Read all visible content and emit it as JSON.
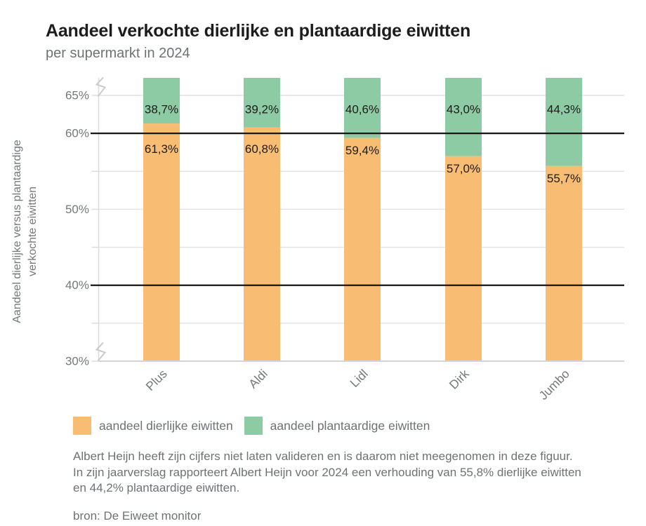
{
  "header": {
    "title": "Aandeel verkochte dierlijke en plantaardige eiwitten",
    "subtitle": "per supermarkt in 2024"
  },
  "chart_data": {
    "type": "bar",
    "variant": "stacked-percentage",
    "title": "Aandeel verkochte dierlijke en plantaardige eiwitten",
    "subtitle": "per supermarkt in 2024",
    "categories": [
      "Plus",
      "Aldi",
      "Lidl",
      "Dirk",
      "Jumbo"
    ],
    "series": [
      {
        "name": "aandeel dierlijke eiwitten",
        "color": "#F8BD73",
        "values": [
          61.3,
          60.8,
          59.4,
          57.0,
          55.7
        ],
        "labels": [
          "61,3%",
          "60,8%",
          "59,4%",
          "57,0%",
          "55,7%"
        ]
      },
      {
        "name": "aandeel plantaardige eiwitten",
        "color": "#8DCBA4",
        "values": [
          38.7,
          39.2,
          40.6,
          43.0,
          44.3
        ],
        "labels": [
          "38,7%",
          "39,2%",
          "40,6%",
          "43,0%",
          "44,3%"
        ]
      }
    ],
    "stack_total": 100,
    "ylabel_lines": [
      "Aandeel dierlijke versus plantaardige",
      "verkochte eiwitten"
    ],
    "yticks": [
      {
        "value": 65,
        "label": "65%"
      },
      {
        "value": 60,
        "label": "60%"
      },
      {
        "value": 50,
        "label": "50%"
      },
      {
        "value": 40,
        "label": "40%"
      },
      {
        "value": 30,
        "label": "30%"
      }
    ],
    "gridline_values": [
      30,
      35,
      40,
      45,
      50,
      55,
      60,
      65
    ],
    "emphasized_line_values": [
      40,
      60
    ],
    "visible_range": [
      30,
      67.3
    ],
    "axis_break": true,
    "legend_position": "bottom",
    "colors": {
      "grid": "#e4e4e4",
      "baseline": "#d4d4d4",
      "emphasis": "#161616",
      "axis": "#dcdcdc",
      "break_mark": "#cccccc",
      "tick_label": "#75787a",
      "category_label": "#75787a",
      "value_label": "#1c1c1c",
      "ylabel": "#75787a"
    }
  },
  "footnote": {
    "lines": [
      "Albert Heijn heeft zijn cijfers niet laten valideren en is daarom niet meegenomen in deze figuur.",
      "In zijn jaarverslag rapporteert Albert Heijn voor 2024 een verhouding van 55,8% dierlijke eiwitten",
      "en 44,2% plantaardige eiwitten."
    ]
  },
  "source": {
    "text": "bron: De Eiweet monitor"
  }
}
